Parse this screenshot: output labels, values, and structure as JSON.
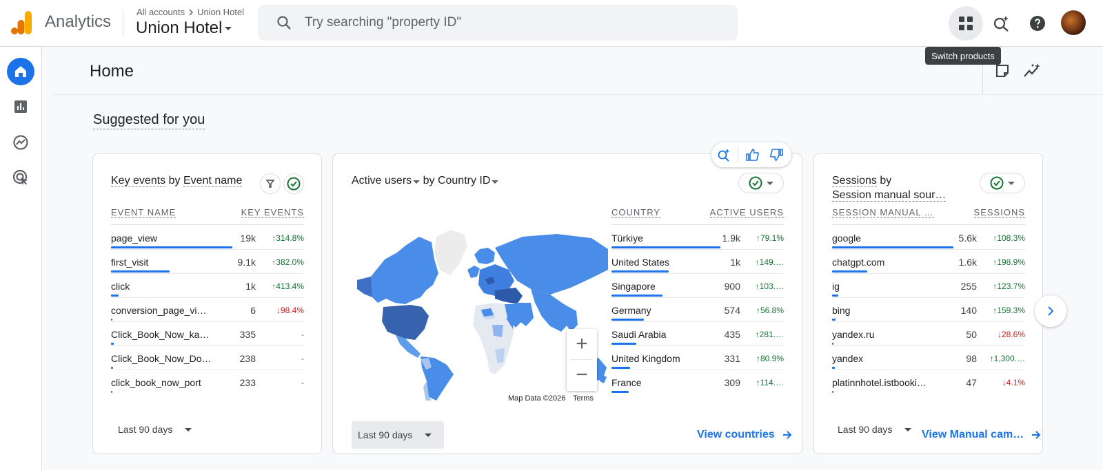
{
  "app": {
    "name": "Analytics"
  },
  "breadcrumb": {
    "parent": "All accounts",
    "child": "Union Hotel"
  },
  "property": {
    "name": "Union Hotel"
  },
  "search": {
    "placeholder": "Try searching \"property ID\""
  },
  "tooltip": {
    "text": "Switch products"
  },
  "page": {
    "title": "Home",
    "section_title": "Suggested for you"
  },
  "rail": {
    "items": [
      "home-icon",
      "reports-icon",
      "explore-icon",
      "advertising-icon"
    ]
  },
  "colors": {
    "accent": "#1a73e8",
    "up": "#137333",
    "down": "#c5221f"
  },
  "cards": [
    {
      "title_metric": "Key events",
      "title_by": "by",
      "title_dim": "Event name",
      "col1": "EVENT NAME",
      "col2": "KEY EVENTS",
      "rows": [
        {
          "name": "page_view",
          "value": "19k",
          "change": "↑314.8%",
          "dir": "up",
          "bar": 1.0
        },
        {
          "name": "first_visit",
          "value": "9.1k",
          "change": "↑382.0%",
          "dir": "up",
          "bar": 0.48
        },
        {
          "name": "click",
          "value": "1k",
          "change": "↑413.4%",
          "dir": "up",
          "bar": 0.06
        },
        {
          "name": "conversion_page_vie…",
          "value": "6",
          "change": "↓98.4%",
          "dir": "down",
          "bar": 0.01
        },
        {
          "name": "Click_Book_Now_kar…",
          "value": "335",
          "change": "-",
          "dir": "neutral",
          "bar": 0.02
        },
        {
          "name": "Click_Book_Now_Dor…",
          "value": "238",
          "change": "-",
          "dir": "neutral",
          "bar": 0.015
        },
        {
          "name": "click_book_now_port",
          "value": "233",
          "change": "-",
          "dir": "neutral",
          "bar": 0.012
        }
      ],
      "range": "Last 90 days"
    },
    {
      "title_metric": "Active users",
      "title_by": "by",
      "title_dim": "Country ID",
      "col1": "COUNTRY",
      "col2": "ACTIVE USERS",
      "rows": [
        {
          "name": "Türkiye",
          "value": "1.9k",
          "change": "↑79.1%",
          "dir": "up",
          "bar": 1.0
        },
        {
          "name": "United States",
          "value": "1k",
          "change": "↑149.…",
          "dir": "up",
          "bar": 0.53
        },
        {
          "name": "Singapore",
          "value": "900",
          "change": "↑103.…",
          "dir": "up",
          "bar": 0.47
        },
        {
          "name": "Germany",
          "value": "574",
          "change": "↑56.8%",
          "dir": "up",
          "bar": 0.3
        },
        {
          "name": "Saudi Arabia",
          "value": "435",
          "change": "↑281.…",
          "dir": "up",
          "bar": 0.23
        },
        {
          "name": "United Kingdom",
          "value": "331",
          "change": "↑80.9%",
          "dir": "up",
          "bar": 0.17
        },
        {
          "name": "France",
          "value": "309",
          "change": "↑114.…",
          "dir": "up",
          "bar": 0.16
        }
      ],
      "range": "Last 90 days",
      "link": "View countries",
      "map_attribution": "Map Data ©2026",
      "map_terms": "Terms",
      "zoom_in": "+",
      "zoom_out": "−"
    },
    {
      "title_metric": "Sessions",
      "title_by": "by",
      "title_dim": "Session manual sour…",
      "col1": "SESSION MANUAL …",
      "col2": "SESSIONS",
      "rows": [
        {
          "name": "google",
          "value": "5.6k",
          "change": "↑108.3%",
          "dir": "up",
          "bar": 1.0
        },
        {
          "name": "chatgpt.com",
          "value": "1.6k",
          "change": "↑198.9%",
          "dir": "up",
          "bar": 0.29
        },
        {
          "name": "ig",
          "value": "255",
          "change": "↑123.7%",
          "dir": "up",
          "bar": 0.05
        },
        {
          "name": "bing",
          "value": "140",
          "change": "↑159.3%",
          "dir": "up",
          "bar": 0.03
        },
        {
          "name": "yandex.ru",
          "value": "50",
          "change": "↓28.6%",
          "dir": "down",
          "bar": 0.01
        },
        {
          "name": "yandex",
          "value": "98",
          "change": "↑1,300.…",
          "dir": "up",
          "bar": 0.02
        },
        {
          "name": "platinnhotel.istbooki…",
          "value": "47",
          "change": "↓4.1%",
          "dir": "down",
          "bar": 0.01
        }
      ],
      "range": "Last 90 days",
      "link": "View Manual cam…"
    }
  ]
}
